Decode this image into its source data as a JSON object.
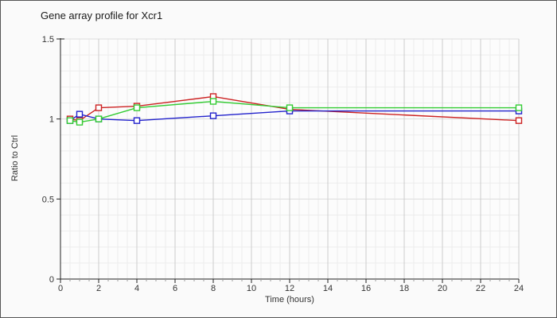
{
  "chart_data": {
    "type": "line",
    "title": "Gene array profile for Xcr1",
    "xlabel": "Time (hours)",
    "ylabel": "Ratio to Ctrl",
    "xlim": [
      0,
      24
    ],
    "ylim": [
      0,
      1.5
    ],
    "x_major_ticks": [
      0,
      2,
      4,
      6,
      8,
      10,
      12,
      14,
      16,
      18,
      20,
      22,
      24
    ],
    "x_minor_step": 0.5,
    "y_major_ticks": [
      0,
      0.5,
      1,
      1.5
    ],
    "y_minor_step": 0.1,
    "grid": true,
    "legend": "none",
    "marker": "open-square",
    "x": [
      0.5,
      1,
      2,
      4,
      8,
      12,
      24
    ],
    "series": [
      {
        "name": "red",
        "color": "#cc2222",
        "values": [
          1.0,
          0.99,
          1.07,
          1.08,
          1.14,
          1.06,
          0.99
        ]
      },
      {
        "name": "blue",
        "color": "#2222cc",
        "values": [
          0.99,
          1.03,
          1.0,
          0.99,
          1.02,
          1.05,
          1.05
        ]
      },
      {
        "name": "green",
        "color": "#33cc33",
        "values": [
          0.99,
          0.98,
          1.0,
          1.07,
          1.11,
          1.07,
          1.07
        ]
      }
    ]
  }
}
